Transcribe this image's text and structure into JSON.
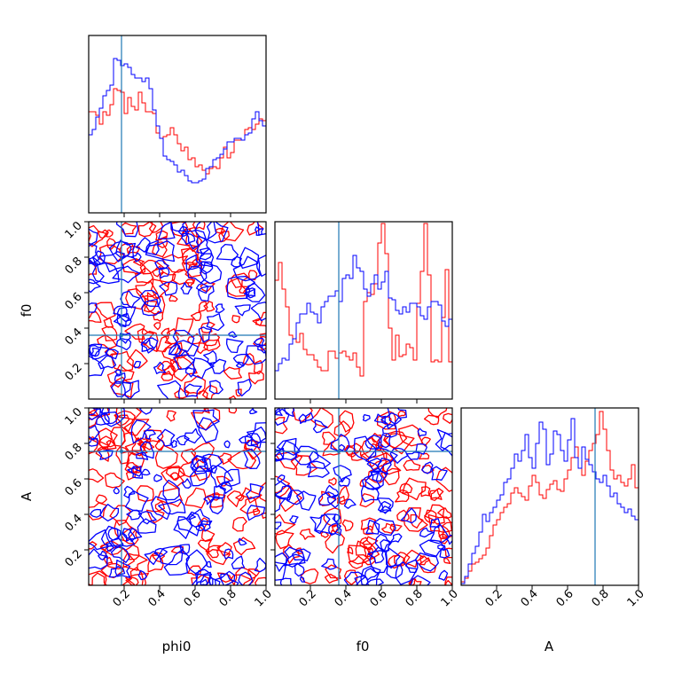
{
  "parameters": [
    "phi0",
    "f0",
    "A"
  ],
  "axis_labels": {
    "phi0_x": "phi0",
    "f0_x": "f0",
    "f0_y": "f0",
    "A_x": "A",
    "A_y": "A"
  },
  "colors": {
    "series_red": "#ff0000",
    "series_blue": "#0000ff",
    "truth_line": "#1f77b4"
  },
  "chart_data": [
    {
      "type": "histogram",
      "panel": "phi0",
      "xlim": [
        0,
        1
      ],
      "truth": 0.185,
      "ticks": [
        0.2,
        0.4,
        0.6,
        0.8
      ],
      "tick_labels_shown": false,
      "bins": 50,
      "series": [
        {
          "color": "red",
          "values": [
            0.57,
            0.57,
            0.55,
            0.5,
            0.57,
            0.55,
            0.61,
            0.7,
            0.69,
            0.68,
            0.56,
            0.65,
            0.6,
            0.58,
            0.68,
            0.62,
            0.57,
            0.57,
            0.56,
            0.45,
            0.42,
            0.43,
            0.44,
            0.48,
            0.44,
            0.39,
            0.35,
            0.37,
            0.3,
            0.31,
            0.26,
            0.27,
            0.24,
            0.22,
            0.25,
            0.26,
            0.25,
            0.31,
            0.37,
            0.31,
            0.34,
            0.41,
            0.41,
            0.41,
            0.47,
            0.48,
            0.47,
            0.5,
            0.53,
            0.52
          ]
        },
        {
          "color": "blue",
          "values": [
            0.44,
            0.47,
            0.54,
            0.59,
            0.66,
            0.69,
            0.72,
            0.87,
            0.86,
            0.83,
            0.84,
            0.82,
            0.78,
            0.76,
            0.76,
            0.74,
            0.76,
            0.7,
            0.58,
            0.49,
            0.42,
            0.32,
            0.3,
            0.29,
            0.27,
            0.23,
            0.24,
            0.21,
            0.18,
            0.17,
            0.17,
            0.18,
            0.19,
            0.25,
            0.26,
            0.3,
            0.31,
            0.33,
            0.36,
            0.4,
            0.4,
            0.42,
            0.42,
            0.41,
            0.44,
            0.45,
            0.53,
            0.57,
            0.52,
            0.49
          ]
        }
      ]
    },
    {
      "type": "histogram",
      "panel": "f0",
      "xlim": [
        0,
        1
      ],
      "truth": 0.36,
      "ticks": [
        0.2,
        0.4,
        0.6,
        0.8
      ],
      "tick_labels_shown": false,
      "bins": 50,
      "series": [
        {
          "color": "red",
          "values": [
            0.67,
            0.77,
            0.62,
            0.52,
            0.36,
            0.34,
            0.32,
            0.37,
            0.28,
            0.25,
            0.25,
            0.22,
            0.18,
            0.16,
            0.16,
            0.27,
            0.27,
            0.23,
            0.26,
            0.27,
            0.24,
            0.22,
            0.26,
            0.18,
            0.13,
            0.55,
            0.6,
            0.59,
            0.65,
            0.88,
            0.99,
            0.82,
            0.4,
            0.22,
            0.36,
            0.24,
            0.25,
            0.31,
            0.29,
            0.22,
            0.54,
            0.72,
            0.99,
            0.7,
            0.21,
            0.22,
            0.21,
            0.46,
            0.73,
            0.21
          ]
        },
        {
          "color": "blue",
          "values": [
            0.16,
            0.2,
            0.23,
            0.22,
            0.31,
            0.34,
            0.43,
            0.48,
            0.48,
            0.54,
            0.49,
            0.48,
            0.43,
            0.52,
            0.55,
            0.58,
            0.58,
            0.61,
            0.55,
            0.68,
            0.7,
            0.68,
            0.81,
            0.74,
            0.72,
            0.62,
            0.58,
            0.65,
            0.7,
            0.62,
            0.66,
            0.72,
            0.57,
            0.56,
            0.5,
            0.48,
            0.52,
            0.49,
            0.54,
            0.54,
            0.52,
            0.47,
            0.45,
            0.52,
            0.55,
            0.55,
            0.53,
            0.44,
            0.41,
            0.45
          ]
        }
      ]
    },
    {
      "type": "histogram",
      "panel": "A",
      "xlim": [
        0,
        1
      ],
      "truth": 0.755,
      "ticks": [
        0.2,
        0.4,
        0.6,
        0.8,
        1.0
      ],
      "tick_labels": [
        "0.2",
        "0.4",
        "0.6",
        "0.8",
        "1.0"
      ],
      "bins": 50,
      "series": [
        {
          "color": "red",
          "values": [
            0.02,
            0.04,
            0.08,
            0.12,
            0.13,
            0.15,
            0.17,
            0.21,
            0.28,
            0.34,
            0.37,
            0.41,
            0.44,
            0.46,
            0.52,
            0.55,
            0.52,
            0.5,
            0.48,
            0.56,
            0.62,
            0.58,
            0.51,
            0.49,
            0.54,
            0.57,
            0.59,
            0.54,
            0.53,
            0.6,
            0.65,
            0.72,
            0.78,
            0.66,
            0.62,
            0.7,
            0.76,
            0.8,
            0.85,
            0.98,
            0.88,
            0.76,
            0.65,
            0.6,
            0.62,
            0.58,
            0.56,
            0.6,
            0.68,
            0.55
          ]
        },
        {
          "color": "blue",
          "values": [
            0.01,
            0.05,
            0.12,
            0.18,
            0.22,
            0.3,
            0.4,
            0.36,
            0.41,
            0.44,
            0.48,
            0.51,
            0.58,
            0.6,
            0.66,
            0.74,
            0.7,
            0.76,
            0.85,
            0.72,
            0.66,
            0.8,
            0.92,
            0.88,
            0.68,
            0.74,
            0.87,
            0.85,
            0.76,
            0.7,
            0.82,
            0.94,
            0.72,
            0.66,
            0.78,
            0.71,
            0.68,
            0.64,
            0.6,
            0.58,
            0.62,
            0.56,
            0.5,
            0.52,
            0.46,
            0.44,
            0.41,
            0.43,
            0.39,
            0.37
          ]
        }
      ]
    },
    {
      "type": "contour",
      "panel": "f0_vs_phi0",
      "x_param": "phi0",
      "y_param": "f0",
      "xlim": [
        0,
        1
      ],
      "ylim": [
        0,
        1
      ],
      "truth": [
        0.185,
        0.36
      ],
      "x_ticks": [
        0.2,
        0.4,
        0.6,
        0.8
      ],
      "x_tick_labels_shown": false,
      "y_ticks": [
        0.2,
        0.4,
        0.6,
        0.8,
        1.0
      ],
      "y_tick_labels": [
        "0.2",
        "0.4",
        "0.6",
        "0.8",
        "1.0"
      ],
      "series": [
        "red",
        "blue"
      ]
    },
    {
      "type": "contour",
      "panel": "A_vs_phi0",
      "x_param": "phi0",
      "y_param": "A",
      "xlim": [
        0,
        1
      ],
      "ylim": [
        0,
        1
      ],
      "truth": [
        0.185,
        0.755
      ],
      "x_ticks": [
        0.2,
        0.4,
        0.6,
        0.8,
        1.0
      ],
      "x_tick_labels": [
        "0.2",
        "0.4",
        "0.6",
        "0.8",
        "1.0"
      ],
      "y_ticks": [
        0.2,
        0.4,
        0.6,
        0.8,
        1.0
      ],
      "y_tick_labels": [
        "0.2",
        "0.4",
        "0.6",
        "0.8",
        "1.0"
      ],
      "series": [
        "red",
        "blue"
      ]
    },
    {
      "type": "contour",
      "panel": "A_vs_f0",
      "x_param": "f0",
      "y_param": "A",
      "xlim": [
        0,
        1
      ],
      "ylim": [
        0,
        1
      ],
      "truth": [
        0.36,
        0.755
      ],
      "x_ticks": [
        0.2,
        0.4,
        0.6,
        0.8,
        1.0
      ],
      "x_tick_labels": [
        "0.2",
        "0.4",
        "0.6",
        "0.8",
        "1.0"
      ],
      "y_ticks": [
        0.2,
        0.4,
        0.6,
        0.8
      ],
      "y_tick_labels_shown": false,
      "series": [
        "red",
        "blue"
      ]
    }
  ]
}
